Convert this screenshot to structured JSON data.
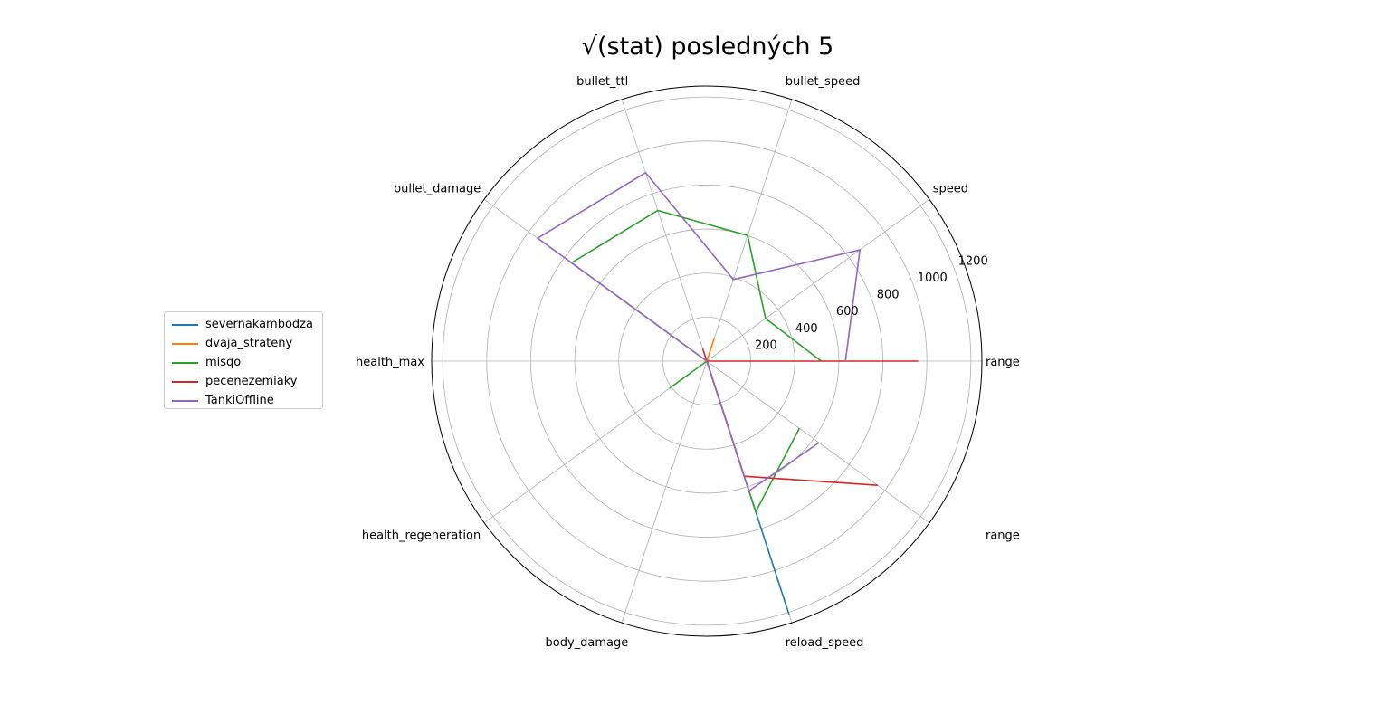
{
  "chart_data": {
    "type": "radar",
    "title": "√(stat) posledných 5",
    "axes": [
      "range",
      "speed",
      "bullet_speed",
      "bullet_ttl",
      "bullet_damage",
      "health_max",
      "health_regeneration",
      "body_damage",
      "reload_speed",
      "range"
    ],
    "r_ticks": [
      "200",
      "400",
      "600",
      "800",
      "1000",
      "1200"
    ],
    "r_max": 1250,
    "grid": true,
    "legend_position": "left",
    "series": [
      {
        "name": "severnakambodza",
        "color": "#1f77b4",
        "values": [
          0,
          0,
          0,
          0,
          0,
          0,
          0,
          0,
          1210,
          0
        ]
      },
      {
        "name": "dvaja_strateny",
        "color": "#ff7f0e",
        "values": [
          0,
          0,
          110,
          0,
          0,
          0,
          0,
          0,
          0,
          0
        ]
      },
      {
        "name": "misqo",
        "color": "#2ca02c",
        "values": [
          520,
          330,
          600,
          720,
          760,
          0,
          210,
          0,
          720,
          520
        ]
      },
      {
        "name": "pecenezemiaky",
        "color": "#d62728",
        "values": [
          960,
          0,
          0,
          60,
          0,
          0,
          0,
          0,
          550,
          960
        ]
      },
      {
        "name": "TankiOffline",
        "color": "#9467bd",
        "values": [
          630,
          860,
          390,
          900,
          950,
          0,
          0,
          0,
          620,
          630
        ]
      }
    ]
  }
}
